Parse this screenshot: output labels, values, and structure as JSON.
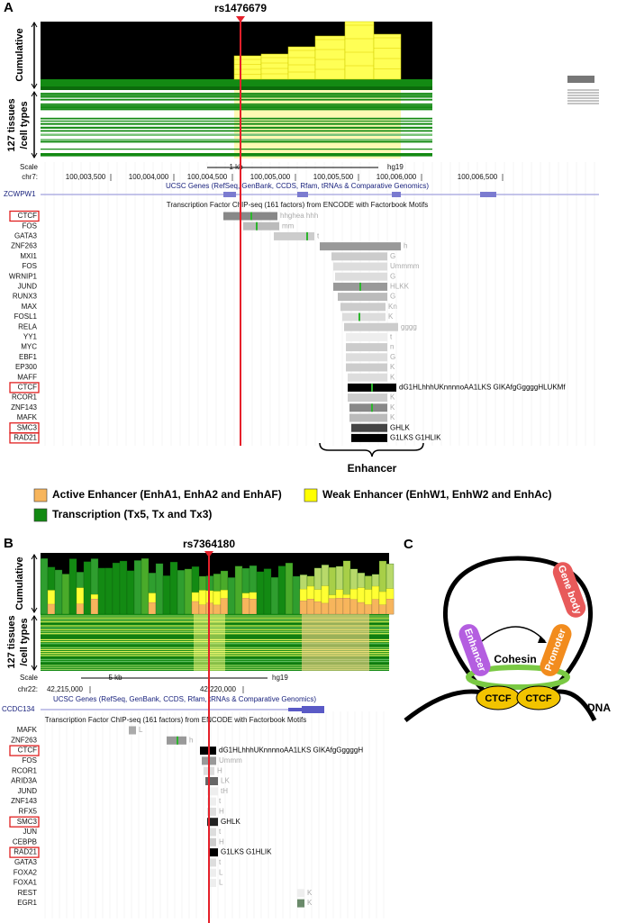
{
  "panel_a": {
    "label": "A",
    "snp": "rs1476679",
    "track_labels": {
      "cumulative": "Cumulative",
      "tissues": [
        "127 tissues",
        "/cell types"
      ]
    },
    "scale": {
      "label": "Scale",
      "chrom": "chr7:",
      "span": "1 kb",
      "assembly": "hg19",
      "positions": [
        "100,003,500",
        "100,004,000",
        "100,004,500",
        "100,005,000",
        "100,005,500",
        "100,006,000",
        "100,006,500"
      ]
    },
    "gene_track": "UCSC Genes (RefSeq, GenBank, CCDS, Rfam, tRNAs & Comparative Genomics)",
    "gene": "ZCWPW1",
    "tf_track": "Transcription Factor ChIP-seq (161 factors) from ENCODE with Factorbook Motifs",
    "factors": [
      {
        "name": "CTCF",
        "highlight": true,
        "motif": "hhghea hhh"
      },
      {
        "name": "FOS",
        "motif": "mm"
      },
      {
        "name": "GATA3",
        "motif": "t"
      },
      {
        "name": "ZNF263",
        "motif": "h"
      },
      {
        "name": "MXI1",
        "motif": "G"
      },
      {
        "name": "FOS",
        "motif": "Ummmm"
      },
      {
        "name": "WRNIP1",
        "motif": "G"
      },
      {
        "name": "JUND",
        "motif": "HLKK"
      },
      {
        "name": "RUNX3",
        "motif": "G"
      },
      {
        "name": "MAX",
        "motif": "Kn"
      },
      {
        "name": "FOSL1",
        "motif": "K"
      },
      {
        "name": "RELA",
        "motif": "gggg"
      },
      {
        "name": "YY1",
        "motif": "t"
      },
      {
        "name": "MYC",
        "motif": "n"
      },
      {
        "name": "EBF1",
        "motif": "G"
      },
      {
        "name": "EP300",
        "motif": "K"
      },
      {
        "name": "MAFF",
        "motif": "K"
      },
      {
        "name": "CTCF",
        "highlight": true,
        "motif": "dG1HLhhhUKnnnnoAA1LKS GIKAfgGggggHLUKMf"
      },
      {
        "name": "RCOR1",
        "motif": "K"
      },
      {
        "name": "ZNF143",
        "motif": "K"
      },
      {
        "name": "MAFK",
        "motif": "K"
      },
      {
        "name": "SMC3",
        "highlight": true,
        "motif": "GHLK"
      },
      {
        "name": "RAD21",
        "highlight": true,
        "motif": "G1LKS G1HLIK"
      }
    ],
    "enhancer": "Enhancer"
  },
  "legend": [
    {
      "label": "Active Enhancer (EnhA1, EnhA2 and EnhAF)",
      "color": "#f7b55c"
    },
    {
      "label": "Weak Enhancer (EnhW1, EnhW2 and EnhAc)",
      "color": "#ffff00"
    },
    {
      "label": "Transcription (Tx5, Tx and Tx3)",
      "color": "#138a13"
    }
  ],
  "panel_b": {
    "label": "B",
    "snp": "rs7364180",
    "track_labels": {
      "cumulative": "Cumulative",
      "tissues": [
        "127 tissues",
        "/cell types"
      ]
    },
    "scale": {
      "label": "Scale",
      "chrom": "chr22:",
      "span": "5 kb",
      "assembly": "hg19",
      "positions": [
        "42,215,000",
        "42,220,000"
      ]
    },
    "gene_track": "UCSC Genes (RefSeq, GenBank, CCDS, Rfam, tRNAs & Comparative Genomics)",
    "gene": "CCDC134",
    "tf_track": "Transcription Factor ChIP-seq (161 factors) from ENCODE with Factorbook Motifs",
    "factors": [
      {
        "name": "MAFK",
        "motif": "L"
      },
      {
        "name": "ZNF263",
        "motif": "h"
      },
      {
        "name": "CTCF",
        "highlight": true,
        "motif": "dG1HLhhhUKnnnnoAA1LKS GIKAfgGggggH"
      },
      {
        "name": "FOS",
        "motif": "Ummm"
      },
      {
        "name": "RCOR1",
        "motif": "H"
      },
      {
        "name": "ARID3A",
        "motif": "LK"
      },
      {
        "name": "JUND",
        "motif": "tH"
      },
      {
        "name": "ZNF143",
        "motif": "t"
      },
      {
        "name": "RFX5",
        "motif": "H"
      },
      {
        "name": "SMC3",
        "highlight": true,
        "motif": "GHLK"
      },
      {
        "name": "JUN",
        "motif": "t"
      },
      {
        "name": "CEBPB",
        "motif": "H"
      },
      {
        "name": "RAD21",
        "highlight": true,
        "motif": "G1LKS G1HLIK"
      },
      {
        "name": "GATA3",
        "motif": "t"
      },
      {
        "name": "FOXA2",
        "motif": "L"
      },
      {
        "name": "FOXA1",
        "motif": "L"
      },
      {
        "name": "REST",
        "motif": "K"
      },
      {
        "name": "EGR1",
        "motif": "K"
      }
    ]
  },
  "panel_c": {
    "label": "C",
    "gene_body": "Gene body",
    "promoter": "Promoter",
    "enhancer": "Enhancer",
    "cohesin": "Cohesin",
    "ctcf": [
      "CTCF",
      "CTCF"
    ],
    "dna": "DNA"
  }
}
